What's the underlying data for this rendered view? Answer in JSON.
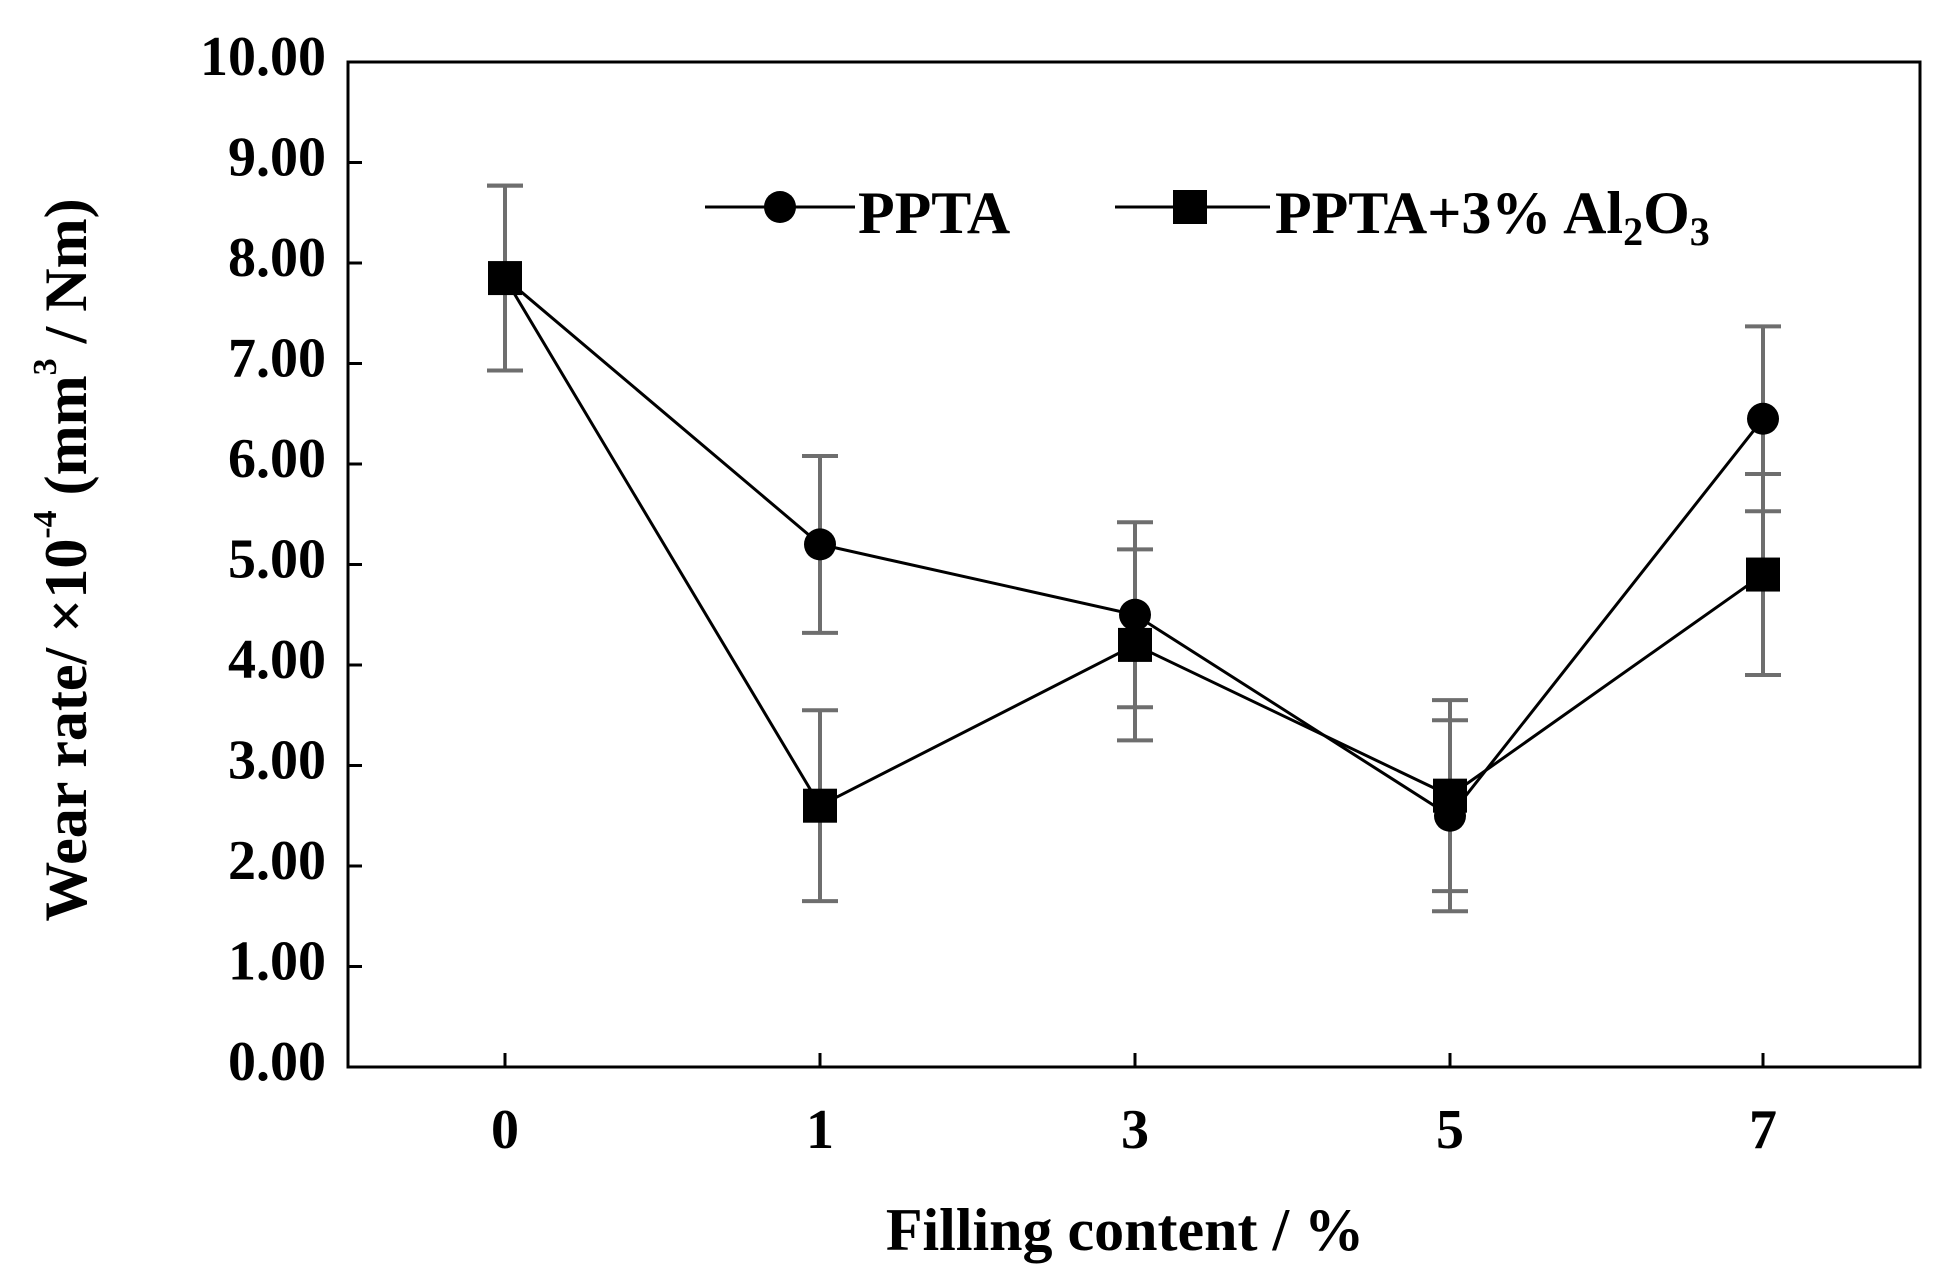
{
  "chart_data": {
    "type": "line",
    "title": "",
    "xlabel": "Filling  content / %",
    "ylabel": {
      "prefix": "Wear rate/ ×10",
      "exponent": "-4",
      "middle": " (mm",
      "unit_exponent": "3",
      "suffix": " / Nm)"
    },
    "categories": [
      "0",
      "1",
      "3",
      "5",
      "7"
    ],
    "ylim": [
      0,
      10
    ],
    "yticks": [
      "0.00",
      "1.00",
      "2.00",
      "3.00",
      "4.00",
      "5.00",
      "6.00",
      "7.00",
      "8.00",
      "9.00",
      "10.00"
    ],
    "grid": false,
    "legend_position": "top-right",
    "series": [
      {
        "name": "PPTA",
        "marker": "circle",
        "values": [
          7.85,
          5.2,
          4.5,
          2.5,
          6.45
        ],
        "errors": [
          0.92,
          0.88,
          0.92,
          0.95,
          0.92
        ]
      },
      {
        "name": "PPTA+3% Al2O3",
        "legend": {
          "base": "PPTA+3% Al",
          "sub1": "2",
          "mid": "O",
          "sub2": "3"
        },
        "marker": "square",
        "values": [
          7.85,
          2.6,
          4.2,
          2.7,
          4.9
        ],
        "errors": [
          0.92,
          0.95,
          0.95,
          0.95,
          1.0
        ]
      }
    ]
  }
}
